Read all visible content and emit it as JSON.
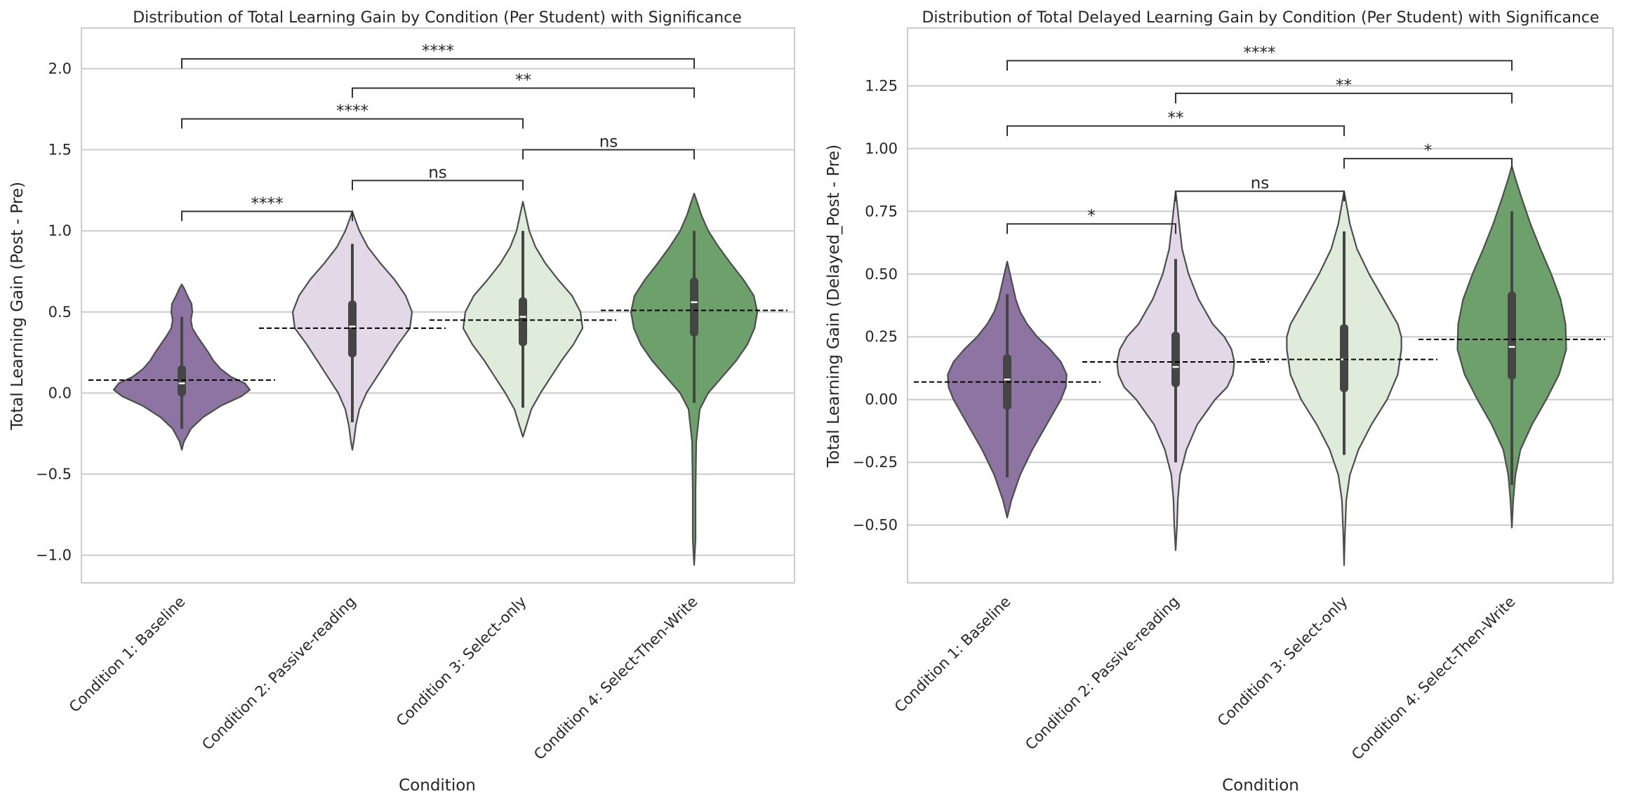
{
  "chart_data": [
    {
      "type": "violin",
      "title": "Distribution of Total Learning Gain by Condition (Per Student) with Significance",
      "xlabel": "Condition",
      "ylabel": "Total Learning Gain (Post - Pre)",
      "ylim": [
        -1.17,
        2.25
      ],
      "yticks": [
        -1.0,
        -0.5,
        0.0,
        0.5,
        1.0,
        1.5,
        2.0
      ],
      "ytick_labels": [
        "−1.0",
        "−0.5",
        "0.0",
        "0.5",
        "1.0",
        "1.5",
        "2.0"
      ],
      "categories": [
        "Condition 1: Baseline",
        "Condition 2: Passive-reading",
        "Condition 3: Select-only",
        "Condition 4: Select-Then-Write"
      ],
      "colors": [
        "#8e74a2",
        "#e3d8e8",
        "#dfebdb",
        "#6da06b"
      ],
      "violins": [
        {
          "min": -0.35,
          "max": 0.67,
          "median": 0.06,
          "q1": -0.02,
          "q3": 0.17,
          "wlo": -0.22,
          "whi": 0.47,
          "mean": 0.08,
          "profile": [
            [
              -0.35,
              0
            ],
            [
              -0.3,
              0.03
            ],
            [
              -0.22,
              0.13
            ],
            [
              -0.15,
              0.3
            ],
            [
              -0.08,
              0.55
            ],
            [
              -0.02,
              0.85
            ],
            [
              0.02,
              0.97
            ],
            [
              0.06,
              0.9
            ],
            [
              0.1,
              0.7
            ],
            [
              0.15,
              0.55
            ],
            [
              0.2,
              0.45
            ],
            [
              0.25,
              0.38
            ],
            [
              0.3,
              0.3
            ],
            [
              0.35,
              0.22
            ],
            [
              0.4,
              0.15
            ],
            [
              0.45,
              0.13
            ],
            [
              0.5,
              0.15
            ],
            [
              0.55,
              0.14
            ],
            [
              0.6,
              0.08
            ],
            [
              0.64,
              0.04
            ],
            [
              0.67,
              0
            ]
          ]
        },
        {
          "min": -0.35,
          "max": 1.12,
          "median": 0.41,
          "q1": 0.22,
          "q3": 0.57,
          "wlo": -0.18,
          "whi": 0.92,
          "mean": 0.4,
          "profile": [
            [
              -0.35,
              0
            ],
            [
              -0.3,
              0.02
            ],
            [
              -0.2,
              0.05
            ],
            [
              -0.1,
              0.1
            ],
            [
              0.0,
              0.2
            ],
            [
              0.1,
              0.35
            ],
            [
              0.2,
              0.5
            ],
            [
              0.3,
              0.65
            ],
            [
              0.4,
              0.82
            ],
            [
              0.5,
              0.85
            ],
            [
              0.6,
              0.76
            ],
            [
              0.7,
              0.6
            ],
            [
              0.8,
              0.4
            ],
            [
              0.9,
              0.22
            ],
            [
              1.0,
              0.1
            ],
            [
              1.07,
              0.04
            ],
            [
              1.12,
              0
            ]
          ]
        },
        {
          "min": -0.27,
          "max": 1.18,
          "median": 0.47,
          "q1": 0.29,
          "q3": 0.59,
          "wlo": -0.09,
          "whi": 1.0,
          "mean": 0.45,
          "profile": [
            [
              -0.27,
              0
            ],
            [
              -0.2,
              0.05
            ],
            [
              -0.1,
              0.12
            ],
            [
              0.0,
              0.25
            ],
            [
              0.1,
              0.4
            ],
            [
              0.2,
              0.55
            ],
            [
              0.3,
              0.72
            ],
            [
              0.4,
              0.85
            ],
            [
              0.5,
              0.82
            ],
            [
              0.6,
              0.7
            ],
            [
              0.7,
              0.5
            ],
            [
              0.8,
              0.32
            ],
            [
              0.9,
              0.18
            ],
            [
              1.0,
              0.09
            ],
            [
              1.1,
              0.04
            ],
            [
              1.18,
              0
            ]
          ]
        },
        {
          "min": -1.06,
          "max": 1.23,
          "median": 0.56,
          "q1": 0.35,
          "q3": 0.71,
          "wlo": -0.06,
          "whi": 1.0,
          "mean": 0.51,
          "profile": [
            [
              -1.06,
              0
            ],
            [
              -0.9,
              0.02
            ],
            [
              -0.6,
              0.02
            ],
            [
              -0.3,
              0.03
            ],
            [
              -0.1,
              0.08
            ],
            [
              0.0,
              0.2
            ],
            [
              0.1,
              0.4
            ],
            [
              0.2,
              0.6
            ],
            [
              0.3,
              0.76
            ],
            [
              0.4,
              0.86
            ],
            [
              0.5,
              0.9
            ],
            [
              0.6,
              0.85
            ],
            [
              0.7,
              0.7
            ],
            [
              0.8,
              0.52
            ],
            [
              0.9,
              0.35
            ],
            [
              1.0,
              0.2
            ],
            [
              1.1,
              0.1
            ],
            [
              1.18,
              0.04
            ],
            [
              1.23,
              0
            ]
          ]
        }
      ],
      "significance": [
        {
          "from": 0,
          "to": 1,
          "label": "****",
          "y": 1.12
        },
        {
          "from": 1,
          "to": 2,
          "label": "ns",
          "y": 1.31
        },
        {
          "from": 2,
          "to": 3,
          "label": "ns",
          "y": 1.5
        },
        {
          "from": 0,
          "to": 2,
          "label": "****",
          "y": 1.69
        },
        {
          "from": 1,
          "to": 3,
          "label": "**",
          "y": 1.88
        },
        {
          "from": 0,
          "to": 3,
          "label": "****",
          "y": 2.06
        }
      ],
      "bracket_drop": 0.06
    },
    {
      "type": "violin",
      "title": "Distribution of Total Delayed Learning Gain by Condition (Per Student) with Significance",
      "xlabel": "Condition",
      "ylabel": "Total Learning Gain (Delayed_Post - Pre)",
      "ylim": [
        -0.73,
        1.48
      ],
      "yticks": [
        -0.5,
        -0.25,
        0.0,
        0.25,
        0.5,
        0.75,
        1.0,
        1.25
      ],
      "ytick_labels": [
        "−0.50",
        "−0.25",
        "0.00",
        "0.25",
        "0.50",
        "0.75",
        "1.00",
        "1.25"
      ],
      "categories": [
        "Condition 1: Baseline",
        "Condition 2: Passive-reading",
        "Condition 3: Select-only",
        "Condition 4: Select-Then-Write"
      ],
      "colors": [
        "#8e74a2",
        "#e3d8e8",
        "#dfebdb",
        "#6da06b"
      ],
      "violins": [
        {
          "min": -0.47,
          "max": 0.55,
          "median": 0.08,
          "q1": -0.04,
          "q3": 0.18,
          "wlo": -0.31,
          "whi": 0.42,
          "mean": 0.07,
          "profile": [
            [
              -0.47,
              0
            ],
            [
              -0.4,
              0.06
            ],
            [
              -0.3,
              0.18
            ],
            [
              -0.2,
              0.35
            ],
            [
              -0.1,
              0.55
            ],
            [
              0.0,
              0.75
            ],
            [
              0.05,
              0.82
            ],
            [
              0.1,
              0.83
            ],
            [
              0.15,
              0.75
            ],
            [
              0.2,
              0.6
            ],
            [
              0.25,
              0.42
            ],
            [
              0.3,
              0.28
            ],
            [
              0.35,
              0.18
            ],
            [
              0.4,
              0.12
            ],
            [
              0.45,
              0.08
            ],
            [
              0.5,
              0.04
            ],
            [
              0.55,
              0
            ]
          ]
        },
        {
          "min": -0.6,
          "max": 0.83,
          "median": 0.13,
          "q1": 0.05,
          "q3": 0.27,
          "wlo": -0.25,
          "whi": 0.56,
          "mean": 0.15,
          "profile": [
            [
              -0.6,
              0
            ],
            [
              -0.5,
              0.02
            ],
            [
              -0.4,
              0.03
            ],
            [
              -0.3,
              0.06
            ],
            [
              -0.2,
              0.15
            ],
            [
              -0.1,
              0.3
            ],
            [
              0.0,
              0.55
            ],
            [
              0.05,
              0.72
            ],
            [
              0.1,
              0.8
            ],
            [
              0.15,
              0.82
            ],
            [
              0.2,
              0.78
            ],
            [
              0.25,
              0.68
            ],
            [
              0.3,
              0.52
            ],
            [
              0.4,
              0.32
            ],
            [
              0.5,
              0.18
            ],
            [
              0.6,
              0.09
            ],
            [
              0.7,
              0.05
            ],
            [
              0.78,
              0.02
            ],
            [
              0.83,
              0
            ]
          ]
        },
        {
          "min": -0.66,
          "max": 0.83,
          "median": 0.16,
          "q1": 0.03,
          "q3": 0.3,
          "wlo": -0.22,
          "whi": 0.67,
          "mean": 0.16,
          "profile": [
            [
              -0.66,
              0
            ],
            [
              -0.55,
              0.01
            ],
            [
              -0.4,
              0.03
            ],
            [
              -0.3,
              0.08
            ],
            [
              -0.2,
              0.2
            ],
            [
              -0.1,
              0.38
            ],
            [
              0.0,
              0.6
            ],
            [
              0.1,
              0.75
            ],
            [
              0.2,
              0.8
            ],
            [
              0.25,
              0.8
            ],
            [
              0.3,
              0.75
            ],
            [
              0.4,
              0.55
            ],
            [
              0.5,
              0.35
            ],
            [
              0.6,
              0.18
            ],
            [
              0.7,
              0.08
            ],
            [
              0.78,
              0.03
            ],
            [
              0.83,
              0
            ]
          ]
        },
        {
          "min": -0.51,
          "max": 0.93,
          "median": 0.21,
          "q1": 0.08,
          "q3": 0.43,
          "wlo": -0.34,
          "whi": 0.75,
          "mean": 0.24,
          "profile": [
            [
              -0.51,
              0
            ],
            [
              -0.4,
              0.02
            ],
            [
              -0.3,
              0.05
            ],
            [
              -0.2,
              0.12
            ],
            [
              -0.1,
              0.28
            ],
            [
              0.0,
              0.48
            ],
            [
              0.1,
              0.66
            ],
            [
              0.2,
              0.76
            ],
            [
              0.3,
              0.75
            ],
            [
              0.4,
              0.68
            ],
            [
              0.5,
              0.55
            ],
            [
              0.6,
              0.4
            ],
            [
              0.7,
              0.26
            ],
            [
              0.8,
              0.14
            ],
            [
              0.88,
              0.05
            ],
            [
              0.93,
              0
            ]
          ]
        }
      ],
      "significance": [
        {
          "from": 0,
          "to": 1,
          "label": "*",
          "y": 0.7
        },
        {
          "from": 1,
          "to": 2,
          "label": "ns",
          "y": 0.83
        },
        {
          "from": 2,
          "to": 3,
          "label": "*",
          "y": 0.96
        },
        {
          "from": 0,
          "to": 2,
          "label": "**",
          "y": 1.09
        },
        {
          "from": 1,
          "to": 3,
          "label": "**",
          "y": 1.22
        },
        {
          "from": 0,
          "to": 3,
          "label": "****",
          "y": 1.35
        }
      ],
      "bracket_drop": 0.04
    }
  ]
}
